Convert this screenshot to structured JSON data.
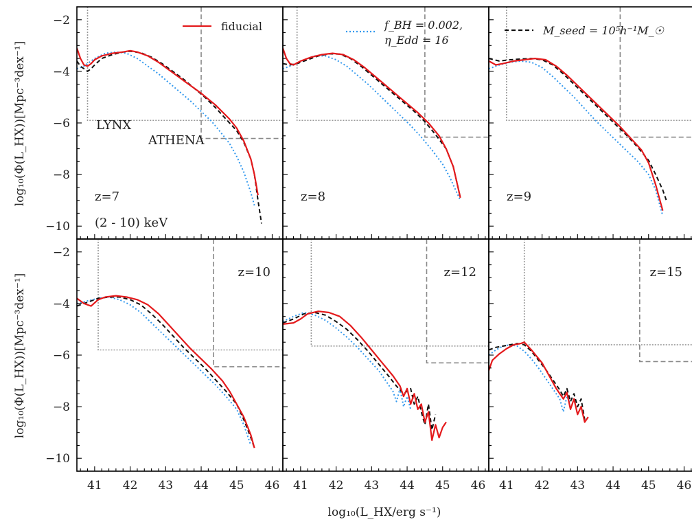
{
  "chart_data": {
    "type": "line",
    "xlabel": "log₁₀(L_HX/erg s⁻¹)",
    "ylabel": "log₁₀(Φ(L_HX))[Mpc⁻³dex⁻¹]",
    "xlim": [
      40.5,
      46.3
    ],
    "ylim": [
      -10.5,
      -1.5
    ],
    "xticks": [
      41,
      42,
      43,
      44,
      45,
      46
    ],
    "yticks": [
      -2,
      -4,
      -6,
      -8,
      -10
    ],
    "legend": [
      {
        "label": "fiducial",
        "color": "#e41a1c",
        "style": "solid"
      },
      {
        "label": "f_BH = 0.002, η_Edd = 16",
        "label_line1": "f_BH = 0.002,",
        "label_line2": "η_Edd = 16",
        "color": "#3399ee",
        "style": "dotted"
      },
      {
        "label": "M_seed = 10⁵h⁻¹M_☉",
        "color": "#111111",
        "style": "dashed"
      }
    ],
    "annotations": {
      "lynx": "LYNX",
      "athena": "ATHENA",
      "band": "(2 - 10) keV"
    },
    "panels": [
      {
        "label": "z=7",
        "lynx": {
          "x": 40.8,
          "y": -5.9
        },
        "athena": {
          "x": 44.0,
          "y": -6.6
        },
        "series": [
          {
            "name": "fiducial",
            "x": [
              40.5,
              40.6,
              40.7,
              40.8,
              40.9,
              41.0,
              41.2,
              41.5,
              41.8,
              42.0,
              42.2,
              42.5,
              42.8,
              43.0,
              43.3,
              43.6,
              44.0,
              44.4,
              44.8,
              45.0,
              45.2,
              45.4,
              45.5,
              45.6
            ],
            "y": [
              -3.1,
              -3.5,
              -3.75,
              -3.8,
              -3.7,
              -3.55,
              -3.4,
              -3.3,
              -3.25,
              -3.2,
              -3.25,
              -3.4,
              -3.65,
              -3.85,
              -4.15,
              -4.45,
              -4.85,
              -5.3,
              -5.85,
              -6.2,
              -6.7,
              -7.4,
              -8.0,
              -8.8
            ]
          },
          {
            "name": "f_BH = 0.002, η_Edd = 16",
            "x": [
              40.5,
              40.7,
              41.0,
              41.3,
              41.6,
              41.9,
              42.2,
              42.5,
              42.8,
              43.1,
              43.4,
              43.7,
              44.0,
              44.3,
              44.6,
              44.8,
              45.0,
              45.2,
              45.4,
              45.5
            ],
            "y": [
              -3.9,
              -3.8,
              -3.5,
              -3.3,
              -3.25,
              -3.3,
              -3.5,
              -3.8,
              -4.1,
              -4.45,
              -4.8,
              -5.15,
              -5.55,
              -5.95,
              -6.45,
              -6.8,
              -7.3,
              -7.9,
              -8.7,
              -9.2
            ]
          },
          {
            "name": "M_seed = 10⁵h⁻¹M_☉",
            "x": [
              40.5,
              40.6,
              40.7,
              40.8,
              40.9,
              41.0,
              41.2,
              41.5,
              41.8,
              42.0,
              42.3,
              42.6,
              42.9,
              43.2,
              43.5,
              43.8,
              44.1,
              44.4,
              44.7,
              45.0,
              45.2,
              45.4,
              45.5,
              45.6,
              45.7
            ],
            "y": [
              -3.6,
              -3.8,
              -3.9,
              -4.0,
              -3.9,
              -3.75,
              -3.5,
              -3.35,
              -3.25,
              -3.22,
              -3.28,
              -3.45,
              -3.7,
              -4.0,
              -4.3,
              -4.65,
              -5.0,
              -5.4,
              -5.85,
              -6.3,
              -6.75,
              -7.4,
              -8.0,
              -9.0,
              -9.9
            ]
          }
        ]
      },
      {
        "label": "z=8",
        "lynx": {
          "x": 40.9,
          "y": -5.9
        },
        "athena": {
          "x": 44.5,
          "y": -6.55
        },
        "series": [
          {
            "name": "fiducial",
            "x": [
              40.5,
              40.6,
              40.7,
              40.8,
              41.0,
              41.3,
              41.6,
              41.9,
              42.2,
              42.5,
              42.8,
              43.1,
              43.4,
              43.7,
              44.0,
              44.3,
              44.6,
              44.9,
              45.1,
              45.3,
              45.5
            ],
            "y": [
              -3.1,
              -3.5,
              -3.7,
              -3.75,
              -3.6,
              -3.45,
              -3.35,
              -3.3,
              -3.35,
              -3.55,
              -3.85,
              -4.2,
              -4.55,
              -4.9,
              -5.25,
              -5.6,
              -6.0,
              -6.5,
              -7.0,
              -7.7,
              -8.9
            ]
          },
          {
            "name": "f_BH = 0.002, η_Edd = 16",
            "x": [
              40.5,
              40.8,
              41.1,
              41.4,
              41.7,
              42.0,
              42.3,
              42.6,
              42.9,
              43.2,
              43.5,
              43.8,
              44.1,
              44.4,
              44.7,
              45.0,
              45.2,
              45.4,
              45.5
            ],
            "y": [
              -3.9,
              -3.75,
              -3.55,
              -3.4,
              -3.4,
              -3.55,
              -3.8,
              -4.15,
              -4.5,
              -4.9,
              -5.3,
              -5.7,
              -6.1,
              -6.55,
              -7.05,
              -7.6,
              -8.1,
              -8.7,
              -9.0
            ]
          },
          {
            "name": "M_seed = 10⁵h⁻¹M_☉",
            "x": [
              40.5,
              40.7,
              40.9,
              41.2,
              41.5,
              41.8,
              42.1,
              42.4,
              42.7,
              43.0,
              43.3,
              43.6,
              43.9,
              44.2,
              44.5,
              44.8,
              45.1,
              45.3,
              45.5
            ],
            "y": [
              -3.7,
              -3.75,
              -3.7,
              -3.55,
              -3.4,
              -3.32,
              -3.33,
              -3.5,
              -3.8,
              -4.15,
              -4.5,
              -4.85,
              -5.2,
              -5.55,
              -5.95,
              -6.45,
              -7.0,
              -7.7,
              -8.9
            ]
          }
        ]
      },
      {
        "label": "z=9",
        "lynx": {
          "x": 41.0,
          "y": -5.9
        },
        "athena": {
          "x": 44.2,
          "y": -6.55
        },
        "series": [
          {
            "name": "fiducial",
            "x": [
              40.5,
              40.7,
              40.9,
              41.2,
              41.5,
              41.8,
              42.1,
              42.4,
              42.7,
              43.0,
              43.3,
              43.6,
              43.9,
              44.2,
              44.5,
              44.8,
              45.0,
              45.2,
              45.4
            ],
            "y": [
              -3.6,
              -3.75,
              -3.7,
              -3.6,
              -3.55,
              -3.5,
              -3.55,
              -3.8,
              -4.15,
              -4.55,
              -4.95,
              -5.35,
              -5.75,
              -6.15,
              -6.6,
              -7.05,
              -7.55,
              -8.4,
              -9.4
            ]
          },
          {
            "name": "f_BH = 0.002, η_Edd = 16",
            "x": [
              40.5,
              40.8,
              41.1,
              41.4,
              41.7,
              42.0,
              42.3,
              42.6,
              42.9,
              43.2,
              43.5,
              43.8,
              44.1,
              44.4,
              44.7,
              45.0,
              45.2,
              45.4
            ],
            "y": [
              -3.9,
              -3.75,
              -3.65,
              -3.6,
              -3.65,
              -3.85,
              -4.2,
              -4.6,
              -5.0,
              -5.45,
              -5.9,
              -6.3,
              -6.7,
              -7.1,
              -7.5,
              -8.0,
              -8.6,
              -9.6
            ]
          },
          {
            "name": "M_seed = 10⁵h⁻¹M_☉",
            "x": [
              40.5,
              40.8,
              41.1,
              41.4,
              41.7,
              42.0,
              42.3,
              42.6,
              42.9,
              43.2,
              43.5,
              43.8,
              44.1,
              44.4,
              44.7,
              45.0,
              45.2,
              45.4,
              45.5
            ],
            "y": [
              -3.5,
              -3.6,
              -3.55,
              -3.52,
              -3.5,
              -3.55,
              -3.75,
              -4.1,
              -4.5,
              -4.9,
              -5.3,
              -5.7,
              -6.1,
              -6.5,
              -6.95,
              -7.45,
              -8.0,
              -8.6,
              -9.0
            ]
          }
        ]
      },
      {
        "label": "z=10",
        "lynx": {
          "x": 41.1,
          "y": -5.8
        },
        "athena": {
          "x": 44.35,
          "y": -6.45
        },
        "series": [
          {
            "name": "fiducial",
            "x": [
              40.5,
              40.7,
              40.9,
              41.1,
              41.3,
              41.6,
              41.9,
              42.2,
              42.5,
              42.8,
              43.1,
              43.4,
              43.7,
              44.0,
              44.3,
              44.6,
              44.8,
              45.0,
              45.2,
              45.4,
              45.5
            ],
            "y": [
              -3.8,
              -4.0,
              -4.1,
              -3.85,
              -3.75,
              -3.7,
              -3.75,
              -3.85,
              -4.05,
              -4.4,
              -4.85,
              -5.3,
              -5.75,
              -6.15,
              -6.55,
              -7.0,
              -7.4,
              -7.9,
              -8.4,
              -9.1,
              -9.6
            ]
          },
          {
            "name": "f_BH = 0.002, η_Edd = 16",
            "x": [
              40.5,
              40.8,
              41.1,
              41.4,
              41.7,
              42.0,
              42.3,
              42.6,
              42.9,
              43.2,
              43.5,
              43.8,
              44.1,
              44.4,
              44.7,
              45.0,
              45.2,
              45.4
            ],
            "y": [
              -4.0,
              -3.9,
              -3.8,
              -3.75,
              -3.85,
              -4.05,
              -4.35,
              -4.75,
              -5.15,
              -5.55,
              -5.95,
              -6.35,
              -6.75,
              -7.15,
              -7.6,
              -8.1,
              -8.7,
              -9.5
            ]
          },
          {
            "name": "M_seed = 10⁵h⁻¹M_☉",
            "x": [
              40.5,
              40.8,
              41.1,
              41.4,
              41.7,
              42.0,
              42.3,
              42.6,
              42.9,
              43.2,
              43.5,
              43.8,
              44.1,
              44.4,
              44.7,
              45.0,
              45.2,
              45.4,
              45.5
            ],
            "y": [
              -4.1,
              -3.95,
              -3.8,
              -3.75,
              -3.75,
              -3.85,
              -4.05,
              -4.4,
              -4.8,
              -5.25,
              -5.7,
              -6.1,
              -6.5,
              -6.95,
              -7.4,
              -7.9,
              -8.5,
              -9.2,
              -9.6
            ]
          }
        ]
      },
      {
        "label": "z=12",
        "lynx": {
          "x": 41.3,
          "y": -5.65
        },
        "athena": {
          "x": 44.55,
          "y": -6.3
        },
        "series": [
          {
            "name": "fiducial",
            "x": [
              40.5,
              40.8,
              41.0,
              41.2,
              41.5,
              41.8,
              42.1,
              42.4,
              42.7,
              43.0,
              43.3,
              43.6,
              43.8,
              43.9,
              44.0,
              44.1,
              44.2,
              44.3,
              44.4,
              44.5,
              44.6,
              44.7,
              44.8,
              44.9,
              45.0,
              45.1
            ],
            "y": [
              -4.8,
              -4.75,
              -4.6,
              -4.4,
              -4.3,
              -4.35,
              -4.5,
              -4.85,
              -5.3,
              -5.8,
              -6.3,
              -6.8,
              -7.2,
              -7.6,
              -7.3,
              -7.9,
              -7.5,
              -8.1,
              -7.9,
              -8.6,
              -8.2,
              -9.3,
              -8.7,
              -9.2,
              -8.8,
              -8.6
            ]
          },
          {
            "name": "f_BH = 0.002, η_Edd = 16",
            "x": [
              40.5,
              40.8,
              41.1,
              41.4,
              41.7,
              42.0,
              42.3,
              42.6,
              42.9,
              43.2,
              43.4,
              43.6,
              43.7,
              43.8,
              43.9,
              44.0,
              44.1
            ],
            "y": [
              -4.7,
              -4.5,
              -4.35,
              -4.45,
              -4.65,
              -4.95,
              -5.3,
              -5.7,
              -6.15,
              -6.6,
              -7.0,
              -7.4,
              -7.8,
              -7.3,
              -8.0,
              -7.6,
              -8.1
            ]
          },
          {
            "name": "M_seed = 10⁵h⁻¹M_☉",
            "x": [
              40.5,
              40.8,
              41.1,
              41.4,
              41.7,
              42.0,
              42.3,
              42.6,
              42.9,
              43.2,
              43.5,
              43.7,
              43.9,
              44.1,
              44.2,
              44.3,
              44.4,
              44.5,
              44.6,
              44.7,
              44.8
            ],
            "y": [
              -4.75,
              -4.6,
              -4.4,
              -4.35,
              -4.45,
              -4.7,
              -5.0,
              -5.4,
              -5.85,
              -6.35,
              -6.85,
              -7.2,
              -7.5,
              -7.3,
              -7.9,
              -7.6,
              -8.2,
              -8.7,
              -7.9,
              -8.9,
              -8.3
            ]
          }
        ]
      },
      {
        "label": "z=15",
        "lynx": {
          "x": 41.5,
          "y": -5.6
        },
        "athena": {
          "x": 44.75,
          "y": -6.25
        },
        "series": [
          {
            "name": "fiducial",
            "x": [
              40.5,
              40.6,
              40.8,
              41.0,
              41.2,
              41.4,
              41.5,
              41.7,
              42.0,
              42.2,
              42.4,
              42.6,
              42.7,
              42.8,
              42.9,
              43.0,
              43.1,
              43.2,
              43.3
            ],
            "y": [
              -6.6,
              -6.2,
              -5.95,
              -5.75,
              -5.6,
              -5.55,
              -5.5,
              -5.8,
              -6.3,
              -6.8,
              -7.3,
              -7.7,
              -7.45,
              -8.1,
              -7.7,
              -8.3,
              -8.0,
              -8.6,
              -8.4
            ]
          },
          {
            "name": "f_BH = 0.002, η_Edd = 16",
            "x": [
              40.5,
              40.7,
              40.9,
              41.1,
              41.3,
              41.5,
              41.7,
              41.9,
              42.1,
              42.3,
              42.5,
              42.6,
              42.7,
              42.8
            ],
            "y": [
              -6.0,
              -5.8,
              -5.65,
              -5.6,
              -5.65,
              -5.85,
              -6.15,
              -6.5,
              -6.9,
              -7.3,
              -7.7,
              -8.2,
              -7.6,
              -7.9
            ]
          },
          {
            "name": "M_seed = 10⁵h⁻¹M_☉",
            "x": [
              40.5,
              40.7,
              40.9,
              41.1,
              41.3,
              41.5,
              41.7,
              41.9,
              42.1,
              42.3,
              42.5,
              42.6,
              42.7,
              42.8,
              42.9,
              43.0,
              43.1,
              43.2
            ],
            "y": [
              -5.8,
              -5.7,
              -5.65,
              -5.6,
              -5.55,
              -5.6,
              -5.85,
              -6.2,
              -6.55,
              -6.95,
              -7.35,
              -7.6,
              -7.3,
              -7.8,
              -7.5,
              -8.0,
              -7.7,
              -8.5
            ]
          }
        ]
      }
    ]
  },
  "colors": {
    "fiducial": "#e41a1c",
    "variant": "#3399ee",
    "seed": "#111111",
    "limits": "#999999",
    "athena": "#888888"
  }
}
